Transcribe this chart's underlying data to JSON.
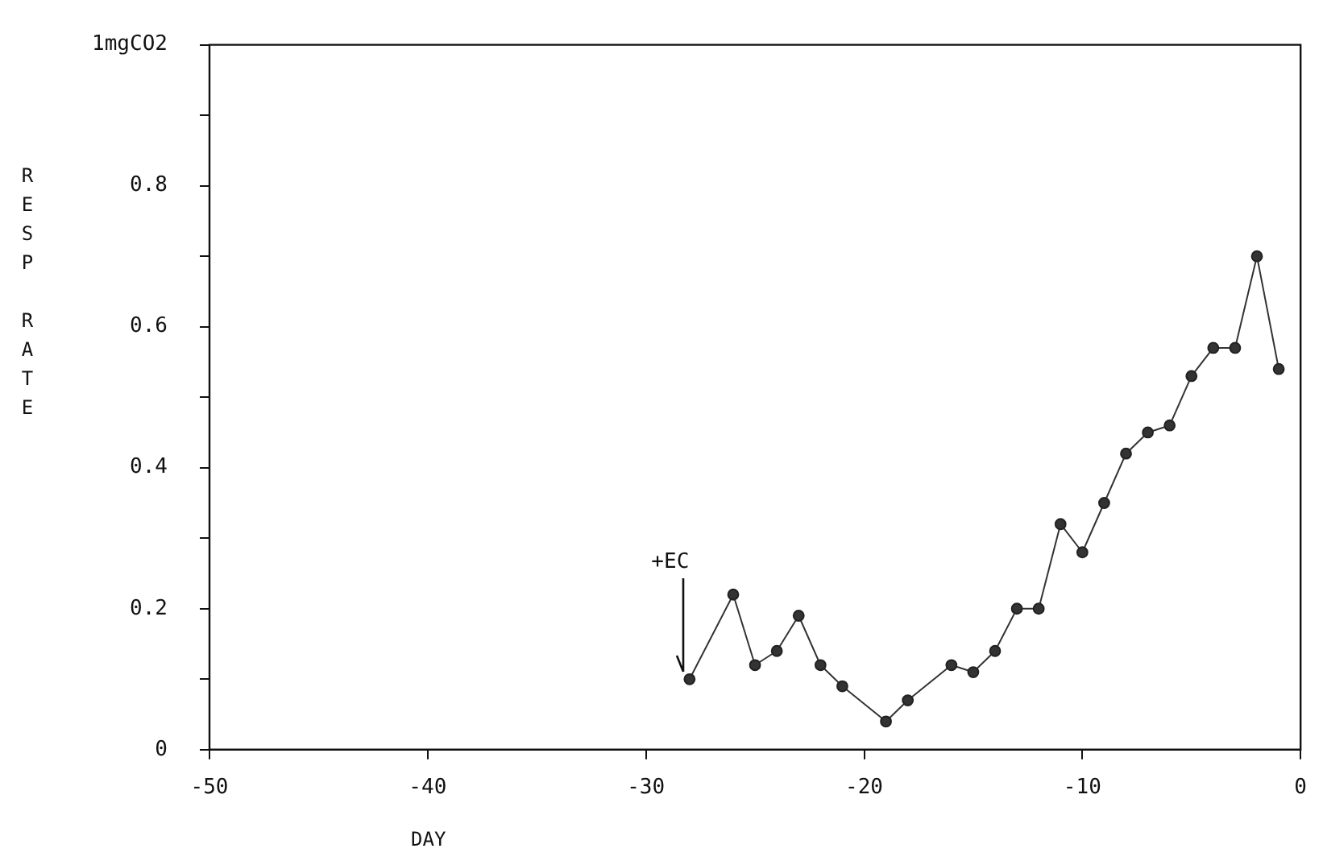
{
  "chart_data": {
    "type": "line",
    "xlabel": "DAY",
    "ylabel": "RESP RATE",
    "x": [
      -28,
      -26,
      -25,
      -24,
      -23,
      -22,
      -21,
      -19,
      -18,
      -16,
      -15,
      -14,
      -13,
      -12,
      -11,
      -10,
      -9,
      -8,
      -7,
      -6,
      -5,
      -4,
      -3,
      -2,
      -1
    ],
    "series": [
      {
        "color": "#333333",
        "values": [
          0.1,
          0.22,
          0.12,
          0.14,
          0.19,
          0.12,
          0.09,
          0.04,
          0.07,
          0.12,
          0.11,
          0.14,
          0.2,
          0.2,
          0.32,
          0.28,
          0.35,
          0.42,
          0.45,
          0.46,
          0.53,
          0.57,
          0.57,
          0.7,
          0.54
        ]
      }
    ],
    "xlim": [
      -50,
      0
    ],
    "xticks": [
      -50,
      -40,
      -30,
      -20,
      -10,
      0
    ],
    "ylim": [
      0,
      1
    ],
    "yticks": [
      0,
      {
        "value": 0.1,
        "label": null
      },
      0.2,
      {
        "value": 0.3,
        "label": null
      },
      0.4,
      {
        "value": 0.5,
        "label": null
      },
      0.6,
      {
        "value": 0.7,
        "label": null
      },
      0.8,
      {
        "value": 0.9,
        "label": null
      },
      {
        "value": 1,
        "label": "1mgCO2"
      }
    ],
    "marker": "circle",
    "line_style": "solid",
    "legend": false,
    "annotations": [
      {
        "text": "+EC",
        "x": -28,
        "y": 0.1
      }
    ]
  }
}
